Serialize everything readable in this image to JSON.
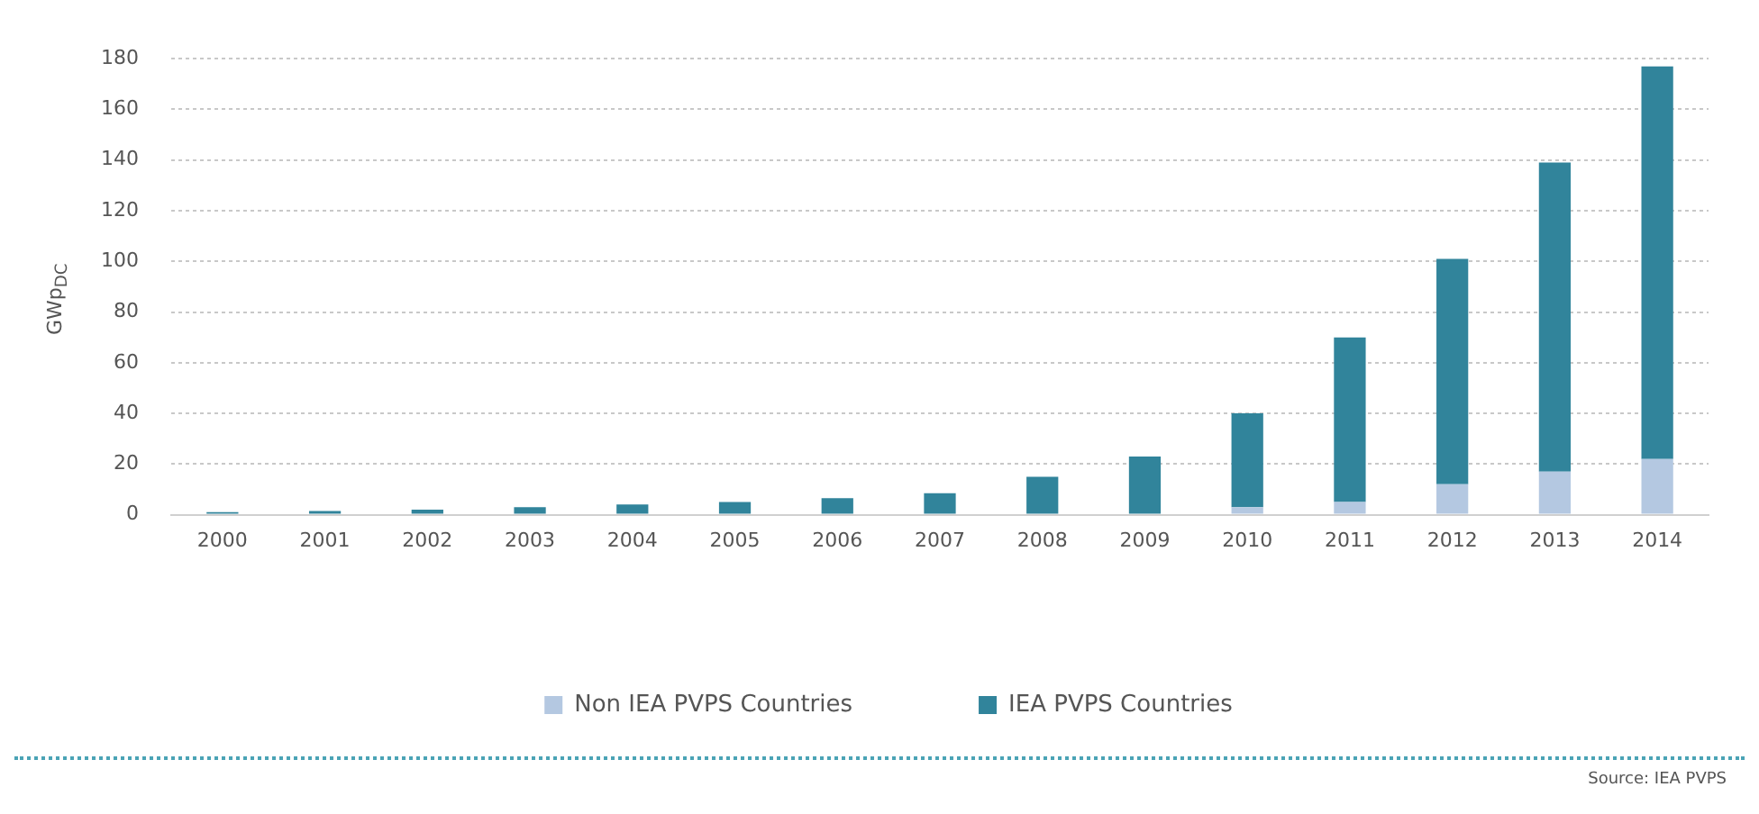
{
  "chart_data": {
    "type": "bar",
    "stacked": true,
    "ylabel": "GWp$_{DC}$",
    "categories": [
      "2000",
      "2001",
      "2002",
      "2003",
      "2004",
      "2005",
      "2006",
      "2007",
      "2008",
      "2009",
      "2010",
      "2011",
      "2012",
      "2013",
      "2014"
    ],
    "series": [
      {
        "name": "Non IEA PVPS Countries",
        "color": "#b4c8e1",
        "values": [
          0,
          0,
          0,
          0,
          0,
          0,
          0,
          0,
          0,
          0,
          3,
          5,
          12,
          17,
          22
        ]
      },
      {
        "name": "IEA PVPS Countries",
        "color": "#31849b",
        "values": [
          1,
          1.5,
          2,
          3,
          4,
          5,
          6.5,
          8.5,
          15,
          23,
          37,
          65,
          89,
          122,
          155
        ]
      }
    ],
    "ylim": [
      0,
      180
    ],
    "yticks": [
      0,
      20,
      40,
      60,
      80,
      100,
      120,
      140,
      160,
      180
    ],
    "grid": "y",
    "legend": "bottom",
    "annotations": [
      "Source: IEA PVPS"
    ]
  }
}
